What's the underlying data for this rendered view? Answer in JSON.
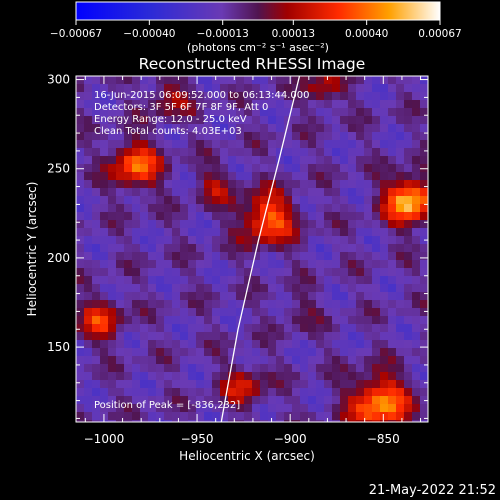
{
  "chart_data": {
    "type": "heatmap",
    "title": "Reconstructed RHESSI Image",
    "xlabel": "Heliocentric X (arcsec)",
    "ylabel": "Heliocentric Y (arcsec)",
    "xlim": [
      -1015,
      -826
    ],
    "ylim": [
      108,
      302
    ],
    "x_ticks": [
      -1000,
      -950,
      -900,
      -850
    ],
    "x_tick_labels": [
      "−1000",
      "−950",
      "−900",
      "−850"
    ],
    "y_ticks": [
      150,
      200,
      250,
      300
    ],
    "y_tick_labels": [
      "150",
      "200",
      "250",
      "300"
    ],
    "colorbar": {
      "range": [
        -0.00067,
        0.00067
      ],
      "ticks": [
        -0.00067,
        -0.0004,
        -0.00013,
        0.00013,
        0.0004,
        0.00067
      ],
      "tick_labels": [
        "−0.00067",
        "−0.00040",
        "−0.00013",
        "0.00013",
        "0.00040",
        "0.00067"
      ],
      "units_label": "(photons cm⁻² s⁻¹ asec⁻²)"
    },
    "annotations": [
      "16-Jun-2015 06:09:52.000 to 06:13:44.000",
      "Detectors: 3F 5F 6F 7F 8F 9F, Att 0",
      "Energy Range: 12.0 - 25.0 keV",
      "Clean    Total counts: 4.03E+03"
    ],
    "peak_label": "Position of Peak = [-836,232]",
    "peak_position": [
      -836,
      232
    ],
    "sources": [
      {
        "x": -836,
        "y": 232,
        "amp": 1.0,
        "sigma": 9
      },
      {
        "x": -912,
        "y": 222,
        "amp": 0.75,
        "sigma": 10
      },
      {
        "x": -983,
        "y": 252,
        "amp": 0.75,
        "sigma": 9
      },
      {
        "x": -852,
        "y": 118,
        "amp": 0.85,
        "sigma": 11
      },
      {
        "x": -1002,
        "y": 165,
        "amp": 0.55,
        "sigma": 8
      },
      {
        "x": -940,
        "y": 240,
        "amp": 0.35,
        "sigma": 7
      },
      {
        "x": -965,
        "y": 290,
        "amp": 0.35,
        "sigma": 8
      },
      {
        "x": -882,
        "y": 295,
        "amp": 0.4,
        "sigma": 7
      },
      {
        "x": -925,
        "y": 128,
        "amp": 0.45,
        "sigma": 8
      },
      {
        "x": -895,
        "y": 170,
        "amp": 0.2,
        "sigma": 7
      }
    ],
    "limb_curve": [
      [
        -937,
        108
      ],
      [
        -928,
        160
      ],
      [
        -917,
        210
      ],
      [
        -906,
        255
      ],
      [
        -895,
        302
      ]
    ]
  },
  "footer": {
    "timestamp": "21-May-2022 21:52"
  }
}
